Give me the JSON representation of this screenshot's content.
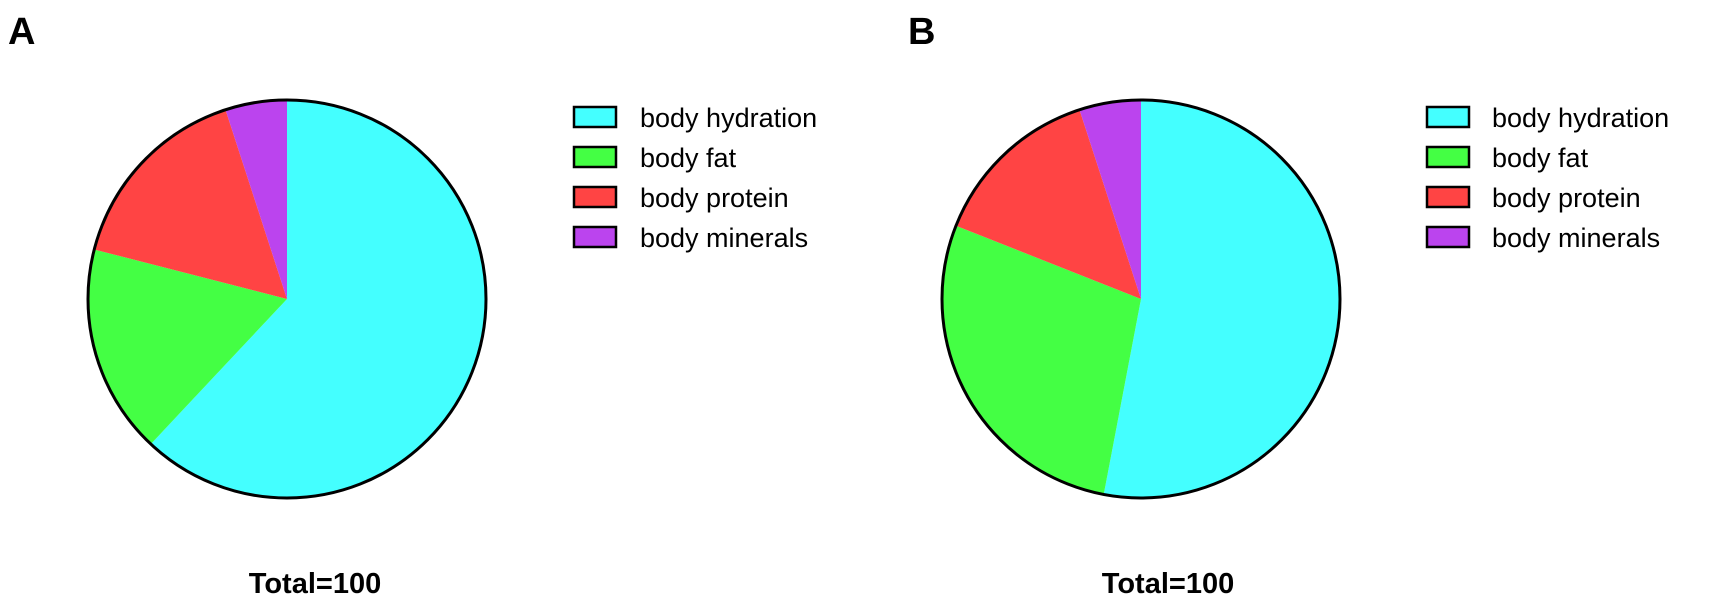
{
  "chart_data": [
    {
      "type": "pie",
      "panel": "A",
      "categories": [
        "body hydration",
        "body fat",
        "body protein",
        "body minerals"
      ],
      "values": [
        62,
        17,
        16,
        5
      ],
      "colors": [
        "#44ffff",
        "#44ff44",
        "#ff4444",
        "#bb44ee"
      ],
      "legend_placement": "right",
      "footer": "Total=100"
    },
    {
      "type": "pie",
      "panel": "B",
      "categories": [
        "body hydration",
        "body fat",
        "body protein",
        "body minerals"
      ],
      "values": [
        53,
        28,
        14,
        5
      ],
      "colors": [
        "#44ffff",
        "#44ff44",
        "#ff4444",
        "#bb44ee"
      ],
      "legend_placement": "right",
      "footer": "Total=100"
    }
  ]
}
